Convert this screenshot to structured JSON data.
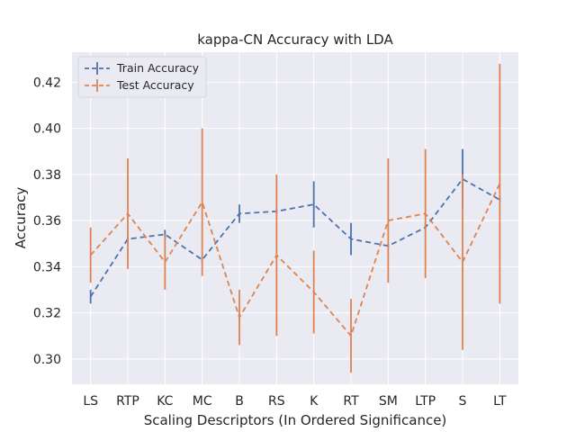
{
  "chart_data": {
    "type": "line",
    "title": "kappa-CN Accuracy with LDA",
    "xlabel": "Scaling Descriptors (In Ordered Significance)",
    "ylabel": "Accuracy",
    "categories": [
      "LS",
      "RTP",
      "KC",
      "MC",
      "B",
      "RS",
      "K",
      "RT",
      "SM",
      "LTP",
      "S",
      "LT"
    ],
    "ylim": [
      0.289,
      0.433
    ],
    "yticks": [
      "0.30",
      "0.32",
      "0.34",
      "0.36",
      "0.38",
      "0.40",
      "0.42"
    ],
    "grid": true,
    "legend_position": "top-left",
    "series": [
      {
        "name": "Train Accuracy",
        "color": "#4c72b0",
        "values": [
          0.327,
          0.352,
          0.354,
          0.343,
          0.363,
          0.364,
          0.367,
          0.352,
          0.349,
          0.357,
          0.378,
          0.369
        ],
        "errors": [
          0.003,
          0.001,
          0.002,
          0.001,
          0.004,
          0.001,
          0.01,
          0.007,
          0.001,
          0.001,
          0.013,
          0.001
        ]
      },
      {
        "name": "Test Accuracy",
        "color": "#dd8452",
        "values": [
          0.345,
          0.363,
          0.342,
          0.368,
          0.318,
          0.345,
          0.329,
          0.31,
          0.36,
          0.363,
          0.342,
          0.376
        ],
        "errors": [
          0.012,
          0.024,
          0.012,
          0.032,
          0.012,
          0.035,
          0.018,
          0.016,
          0.027,
          0.028,
          0.038,
          0.052
        ]
      }
    ]
  }
}
